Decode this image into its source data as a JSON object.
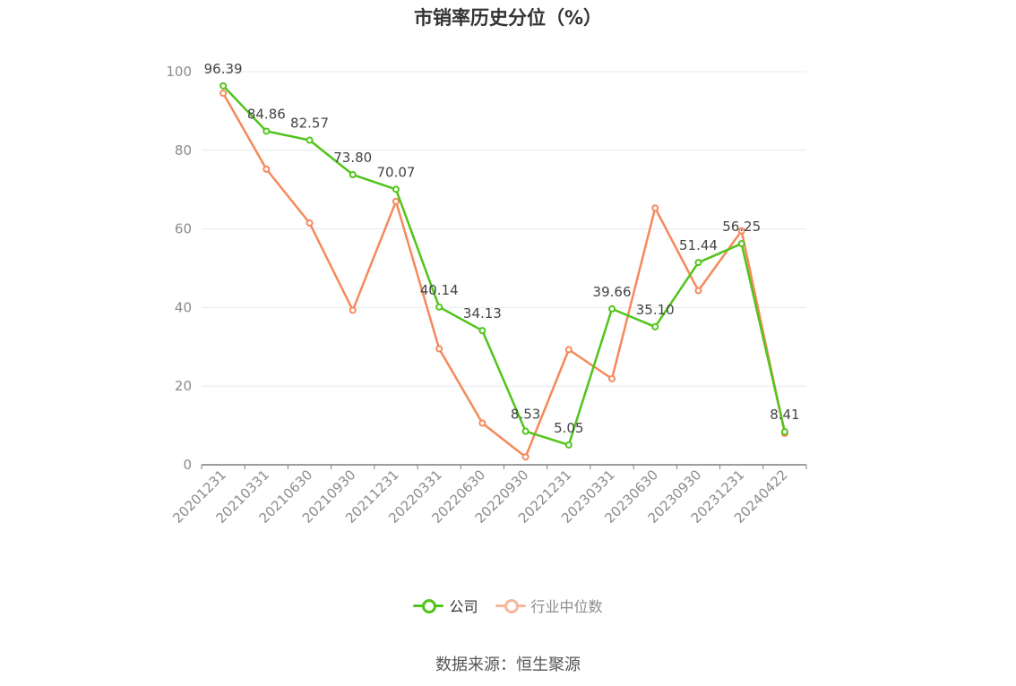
{
  "chart_data": {
    "type": "line",
    "title": "市销率历史分位（%）",
    "categories": [
      "20201231",
      "20210331",
      "20210630",
      "20210930",
      "20211231",
      "20220331",
      "20220630",
      "20220930",
      "20221231",
      "20230331",
      "20230630",
      "20230930",
      "20231231",
      "20240422"
    ],
    "ylim": [
      0,
      100
    ],
    "yticks": [
      0,
      20,
      40,
      60,
      80,
      100
    ],
    "grid": true,
    "legend_position": "bottom",
    "series": [
      {
        "name": "公司",
        "color": "#52c41a",
        "values": [
          96.39,
          84.86,
          82.57,
          73.8,
          70.07,
          40.14,
          34.13,
          8.53,
          5.05,
          39.66,
          35.1,
          51.44,
          56.25,
          8.41
        ],
        "labels": [
          "96.39",
          "84.86",
          "82.57",
          "73.80",
          "70.07",
          "40.14",
          "34.13",
          "8.53",
          "5.05",
          "39.66",
          "35.10",
          "51.44",
          "56.25",
          "8.41"
        ]
      },
      {
        "name": "行业中位数",
        "color": "#f5895b",
        "values": [
          94.5,
          75.2,
          61.5,
          39.3,
          67.0,
          29.5,
          10.6,
          2.0,
          29.3,
          21.9,
          65.3,
          44.3,
          59.5,
          8.0
        ]
      }
    ]
  },
  "legend": {
    "company_label": "公司",
    "industry_label": "行业中位数",
    "company_color": "#52c41a",
    "industry_color": "#f5b89d"
  },
  "source": "数据来源：恒生聚源"
}
